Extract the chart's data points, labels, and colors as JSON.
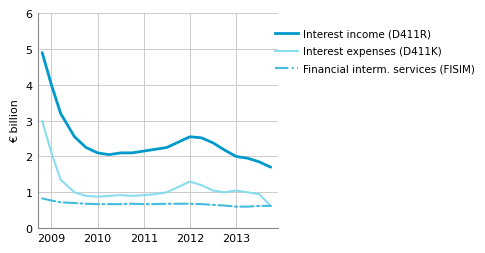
{
  "title": "",
  "ylabel": "€ billion",
  "ylim": [
    0,
    6
  ],
  "yticks": [
    0,
    1,
    2,
    3,
    4,
    5,
    6
  ],
  "xlim": [
    2008.7,
    2013.9
  ],
  "xticks": [
    2009,
    2010,
    2011,
    2012,
    2013
  ],
  "interest_income": {
    "x": [
      2008.8,
      2009.0,
      2009.2,
      2009.5,
      2009.75,
      2010.0,
      2010.25,
      2010.5,
      2010.75,
      2011.0,
      2011.25,
      2011.5,
      2011.75,
      2012.0,
      2012.25,
      2012.5,
      2012.75,
      2013.0,
      2013.25,
      2013.5,
      2013.75
    ],
    "y": [
      4.9,
      4.0,
      3.2,
      2.55,
      2.25,
      2.1,
      2.05,
      2.1,
      2.1,
      2.15,
      2.2,
      2.25,
      2.4,
      2.55,
      2.52,
      2.38,
      2.18,
      2.0,
      1.95,
      1.85,
      1.7
    ],
    "color": "#0099cc",
    "linewidth": 2.0,
    "linestyle": "-",
    "label": "Interest income (D411R)"
  },
  "interest_expenses": {
    "x": [
      2008.8,
      2009.0,
      2009.2,
      2009.5,
      2009.75,
      2010.0,
      2010.25,
      2010.5,
      2010.75,
      2011.0,
      2011.25,
      2011.5,
      2011.75,
      2012.0,
      2012.25,
      2012.5,
      2012.75,
      2013.0,
      2013.25,
      2013.5,
      2013.75
    ],
    "y": [
      3.0,
      2.1,
      1.35,
      1.0,
      0.9,
      0.88,
      0.9,
      0.92,
      0.9,
      0.92,
      0.95,
      1.0,
      1.15,
      1.3,
      1.2,
      1.05,
      1.0,
      1.05,
      1.0,
      0.95,
      0.62
    ],
    "color": "#88ddee",
    "linewidth": 1.5,
    "linestyle": "-",
    "label": "Interest expenses (D411K)"
  },
  "fisim": {
    "x": [
      2008.8,
      2009.0,
      2009.2,
      2009.5,
      2009.75,
      2010.0,
      2010.25,
      2010.5,
      2010.75,
      2011.0,
      2011.25,
      2011.5,
      2011.75,
      2012.0,
      2012.25,
      2012.5,
      2012.75,
      2013.0,
      2013.25,
      2013.5,
      2013.75
    ],
    "y": [
      0.83,
      0.77,
      0.72,
      0.7,
      0.68,
      0.67,
      0.67,
      0.67,
      0.68,
      0.67,
      0.67,
      0.68,
      0.68,
      0.68,
      0.67,
      0.65,
      0.63,
      0.6,
      0.6,
      0.62,
      0.62
    ],
    "color": "#44bbdd",
    "linewidth": 1.5,
    "linestyle": "-.",
    "label": "Financial interm. services (FISIM)"
  },
  "background_color": "#ffffff",
  "grid_color": "#cccccc",
  "legend_labels": [
    "Interest income (D411R)",
    "Interest expenses (D411K)",
    "Financial interm. services (FISIM)"
  ],
  "legend_colors": [
    "#0099cc",
    "#88ddee",
    "#44bbdd"
  ],
  "legend_styles": [
    "-",
    "-",
    "-."
  ],
  "legend_linewidths": [
    2.0,
    1.5,
    1.5
  ]
}
